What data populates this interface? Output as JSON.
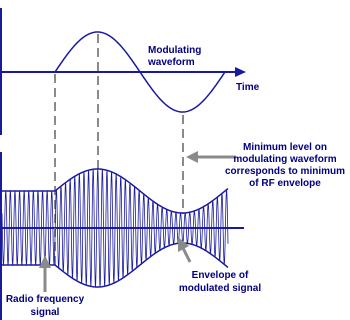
{
  "labels": {
    "modulating": [
      "Modulating",
      "waveform"
    ],
    "time": "Time",
    "minimum": [
      "Minimum level on",
      "modulating waveform",
      "corresponds to minimum",
      "of RF envelope"
    ],
    "envelope": [
      "Envelope of",
      "modulated signal"
    ],
    "rf": [
      "Radio frequency",
      "signal"
    ]
  }
}
